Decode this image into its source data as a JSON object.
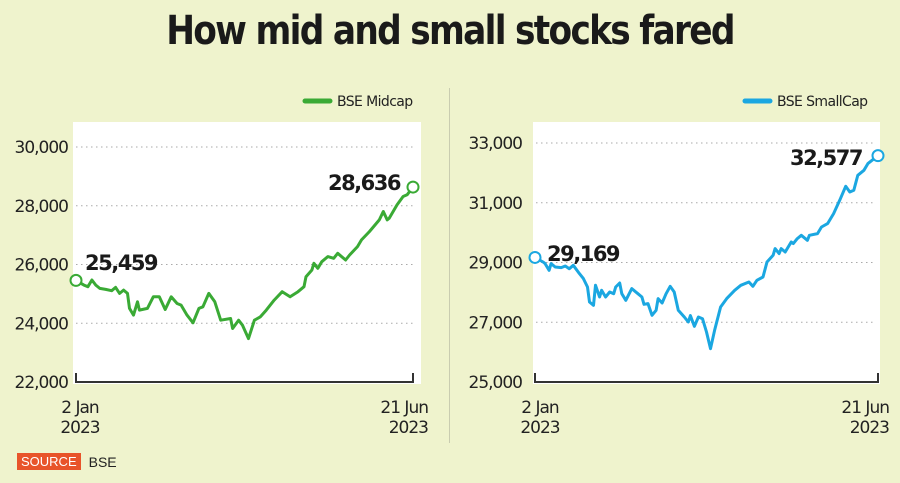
{
  "title": "How mid and small stocks fared",
  "source": {
    "label": "SOURCE",
    "value": "BSE"
  },
  "chart_data": [
    {
      "type": "line",
      "legend": "BSE Midcap",
      "legend_position": "top-right",
      "color": "#3aaa35",
      "ylim": [
        22000,
        30000
      ],
      "yticks": [
        22000,
        24000,
        26000,
        28000,
        30000
      ],
      "ytick_labels": [
        "22,000",
        "24,000",
        "26,000",
        "28,000",
        "30,000"
      ],
      "x_unit": "days since 2 Jan 2023",
      "xlim": [
        0,
        170
      ],
      "xtick_labels": [
        [
          "2 Jan",
          "2023"
        ],
        [
          "21 Jun",
          "2023"
        ]
      ],
      "grid": true,
      "start_label": "25,459",
      "end_label": "28,636",
      "x": [
        0,
        4,
        6,
        8,
        10,
        12,
        15,
        18,
        20,
        22,
        24,
        26,
        27,
        29,
        31,
        32,
        36,
        39,
        42,
        45,
        48,
        51,
        53,
        56,
        59,
        62,
        64,
        67,
        70,
        73,
        78,
        79,
        82,
        84,
        87,
        90,
        93,
        96,
        100,
        104,
        108,
        112,
        115,
        116,
        119,
        120,
        122,
        124,
        127,
        130,
        132,
        136,
        138,
        142,
        144,
        148,
        153,
        155,
        157,
        158,
        162,
        165,
        167,
        170
      ],
      "y": [
        25459,
        25300,
        25243,
        25471,
        25300,
        25186,
        25152,
        25107,
        25221,
        25016,
        25130,
        25016,
        24504,
        24276,
        24731,
        24447,
        24504,
        24902,
        24902,
        24469,
        24902,
        24674,
        24617,
        24276,
        24014,
        24504,
        24561,
        25016,
        24731,
        24105,
        24162,
        23821,
        24105,
        23935,
        23479,
        24105,
        24219,
        24447,
        24788,
        25073,
        24902,
        25073,
        25243,
        25585,
        25812,
        26040,
        25869,
        26097,
        26268,
        26211,
        26381,
        26154,
        26324,
        26609,
        26837,
        27121,
        27519,
        27804,
        27519,
        27576,
        28031,
        28316,
        28373,
        28636
      ]
    },
    {
      "type": "line",
      "legend": "BSE SmallCap",
      "legend_position": "top-right",
      "color": "#1ba7e1",
      "ylim": [
        25000,
        33000
      ],
      "yticks": [
        25000,
        27000,
        29000,
        31000,
        33000
      ],
      "ytick_labels": [
        "25,000",
        "27,000",
        "29,000",
        "31,000",
        "33,000"
      ],
      "x_unit": "days since 2 Jan 2023",
      "xlim": [
        0,
        170
      ],
      "xtick_labels": [
        [
          "2 Jan",
          "2023"
        ],
        [
          "21 Jun",
          "2023"
        ]
      ],
      "grid": true,
      "start_label": "29,169",
      "end_label": "32,577",
      "x": [
        0,
        4,
        5,
        7,
        8,
        10,
        13,
        15,
        17,
        19,
        22,
        24,
        26,
        27,
        29,
        30,
        32,
        33,
        35,
        37,
        39,
        40,
        42,
        43,
        45,
        48,
        51,
        53,
        54,
        56,
        58,
        60,
        61,
        63,
        65,
        67,
        69,
        71,
        74,
        76,
        77,
        79,
        81,
        83,
        85,
        87,
        89,
        92,
        95,
        99,
        102,
        106,
        108,
        110,
        113,
        115,
        118,
        119,
        121,
        122,
        124,
        127,
        128,
        130,
        132,
        135,
        136,
        140,
        142,
        145,
        148,
        151,
        154,
        156,
        158,
        160,
        163,
        165,
        170
      ],
      "y": [
        29169,
        29018,
        28962,
        28739,
        28962,
        28850,
        28828,
        28884,
        28794,
        28906,
        28627,
        28460,
        28181,
        27678,
        27567,
        28236,
        27846,
        28069,
        27846,
        28013,
        27957,
        28181,
        28315,
        27957,
        27734,
        28125,
        27957,
        27846,
        27600,
        27623,
        27232,
        27399,
        27790,
        27645,
        27957,
        28203,
        28013,
        27399,
        27176,
        27009,
        27221,
        26864,
        27176,
        27120,
        26674,
        26116,
        26730,
        27511,
        27790,
        28069,
        28236,
        28348,
        28203,
        28404,
        28515,
        29018,
        29241,
        29464,
        29297,
        29464,
        29352,
        29687,
        29631,
        29799,
        29910,
        29743,
        29910,
        29966,
        30189,
        30301,
        30636,
        31082,
        31551,
        31361,
        31417,
        31919,
        32087,
        32310,
        32577
      ]
    }
  ]
}
